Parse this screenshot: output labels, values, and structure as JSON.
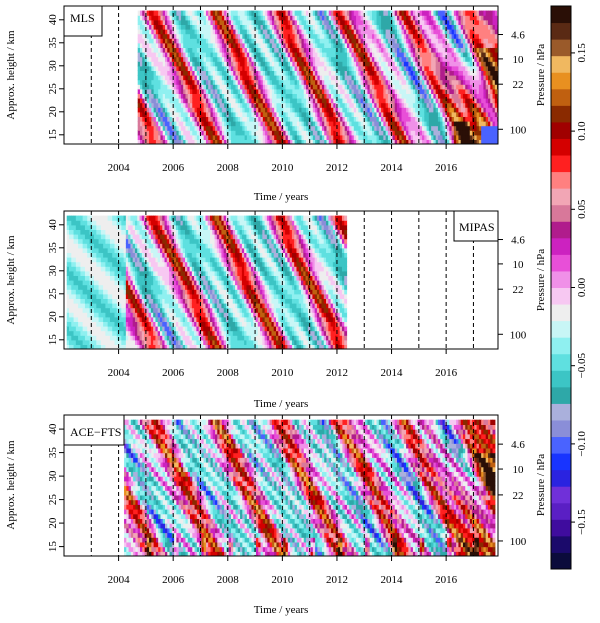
{
  "chart_data": [
    {
      "type": "heatmap",
      "label": "MLS",
      "xlabel": "Time / years",
      "ylabel": "Approx. height / km",
      "y2label": "Pressure / hPa",
      "xlim": [
        2002.0,
        2017.9
      ],
      "ylim": [
        13,
        43
      ],
      "x_ticks": [
        2004,
        2006,
        2008,
        2010,
        2012,
        2014,
        2016
      ],
      "y_ticks": [
        15,
        20,
        25,
        30,
        35,
        40
      ],
      "pressure_ticks": [
        {
          "label": "4.6",
          "height_km": 36.8
        },
        {
          "label": "10",
          "height_km": 31.5
        },
        {
          "label": "22",
          "height_km": 26.0
        },
        {
          "label": "100",
          "height_km": 16.2
        }
      ],
      "year_markers": [
        2003,
        2004,
        2005,
        2006,
        2007,
        2008,
        2009,
        2010,
        2011,
        2012,
        2013,
        2014,
        2015,
        2016,
        2017
      ],
      "data_range": [
        2004.7,
        2017.9
      ]
    },
    {
      "type": "heatmap",
      "label": "MIPAS",
      "xlabel": "Time / years",
      "ylabel": "Approx. height / km",
      "y2label": "Pressure / hPa",
      "xlim": [
        2002.0,
        2017.9
      ],
      "ylim": [
        13,
        43
      ],
      "x_ticks": [
        2004,
        2006,
        2008,
        2010,
        2012,
        2014,
        2016
      ],
      "y_ticks": [
        15,
        20,
        25,
        30,
        35,
        40
      ],
      "pressure_ticks": [
        {
          "label": "4.6",
          "height_km": 36.8
        },
        {
          "label": "10",
          "height_km": 31.5
        },
        {
          "label": "22",
          "height_km": 26.0
        },
        {
          "label": "100",
          "height_km": 16.2
        }
      ],
      "year_markers": [
        2003,
        2004,
        2005,
        2006,
        2007,
        2008,
        2009,
        2010,
        2011,
        2012,
        2013,
        2014,
        2015,
        2016,
        2017
      ],
      "data_range": [
        2002.1,
        2012.3
      ]
    },
    {
      "type": "heatmap",
      "label": "ACE−FTS",
      "xlabel": "Time / years",
      "ylabel": "Approx. height / km",
      "y2label": "Pressure / hPa",
      "xlim": [
        2002.0,
        2017.9
      ],
      "ylim": [
        13,
        43
      ],
      "x_ticks": [
        2004,
        2006,
        2008,
        2010,
        2012,
        2014,
        2016
      ],
      "y_ticks": [
        15,
        20,
        25,
        30,
        35,
        40
      ],
      "pressure_ticks": [
        {
          "label": "4.6",
          "height_km": 36.8
        },
        {
          "label": "10",
          "height_km": 31.5
        },
        {
          "label": "22",
          "height_km": 26.0
        },
        {
          "label": "100",
          "height_km": 16.2
        }
      ],
      "year_markers": [
        2003,
        2004,
        2005,
        2006,
        2007,
        2008,
        2009,
        2010,
        2011,
        2012,
        2013,
        2014,
        2015,
        2016,
        2017
      ],
      "data_range": [
        2004.2,
        2017.7
      ]
    }
  ],
  "colorbar": {
    "range": [
      -0.18,
      0.18
    ],
    "ticks": [
      -0.15,
      -0.1,
      -0.05,
      0.0,
      0.05,
      0.1,
      0.15
    ],
    "tick_labels": [
      "−0.15",
      "−0.10",
      "−0.05",
      "0.00",
      "0.05",
      "0.10",
      "0.15"
    ],
    "colors": [
      "#0b0b3b",
      "#1b0a6b",
      "#3f0c9e",
      "#5a1fc4",
      "#7030d9",
      "#2a23e0",
      "#1834ff",
      "#4a63ff",
      "#8a8ed8",
      "#aab0dc",
      "#2ea8a8",
      "#3cc5c5",
      "#5fe0e0",
      "#8ff0f0",
      "#c8f6f6",
      "#eeeeee",
      "#f7c8f2",
      "#f090e8",
      "#e84fd8",
      "#cc22c0",
      "#b01c8c",
      "#d8789a",
      "#f2a6b5",
      "#ff8080",
      "#ff2020",
      "#d40000",
      "#a00000",
      "#8a2a00",
      "#c06010",
      "#e89020",
      "#f0b860",
      "#9a5a2a",
      "#5a2a14",
      "#2a0f06"
    ]
  }
}
